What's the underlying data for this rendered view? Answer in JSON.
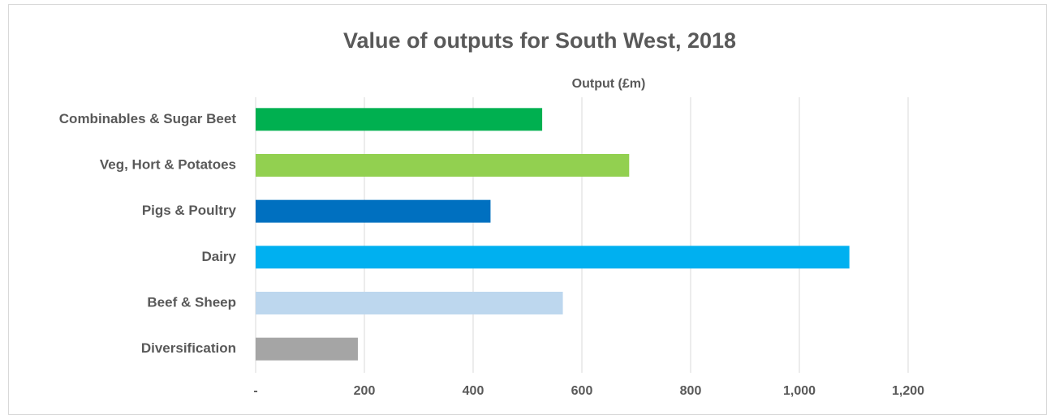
{
  "chart_data": {
    "type": "bar",
    "orientation": "horizontal",
    "title": "Value of outputs for South West, 2018",
    "x_label": "Output (£m)",
    "categories": [
      "Combinables & Sugar Beet",
      "Veg, Hort & Potatoes",
      "Pigs & Poultry",
      "Dairy",
      "Beef & Sheep",
      "Diversification"
    ],
    "values": [
      527,
      687,
      432,
      1092,
      565,
      188
    ],
    "colors": [
      "#00b050",
      "#92d050",
      "#0070c0",
      "#00b0f0",
      "#bdd7ee",
      "#a5a5a5"
    ],
    "xlim": [
      0,
      1400
    ],
    "xticks": [
      {
        "value": 0,
        "label": "-"
      },
      200,
      400,
      600,
      800,
      {
        "value": 1000,
        "label": "1,000"
      },
      {
        "value": 1200,
        "label": "1,200"
      }
    ],
    "grid": true
  }
}
